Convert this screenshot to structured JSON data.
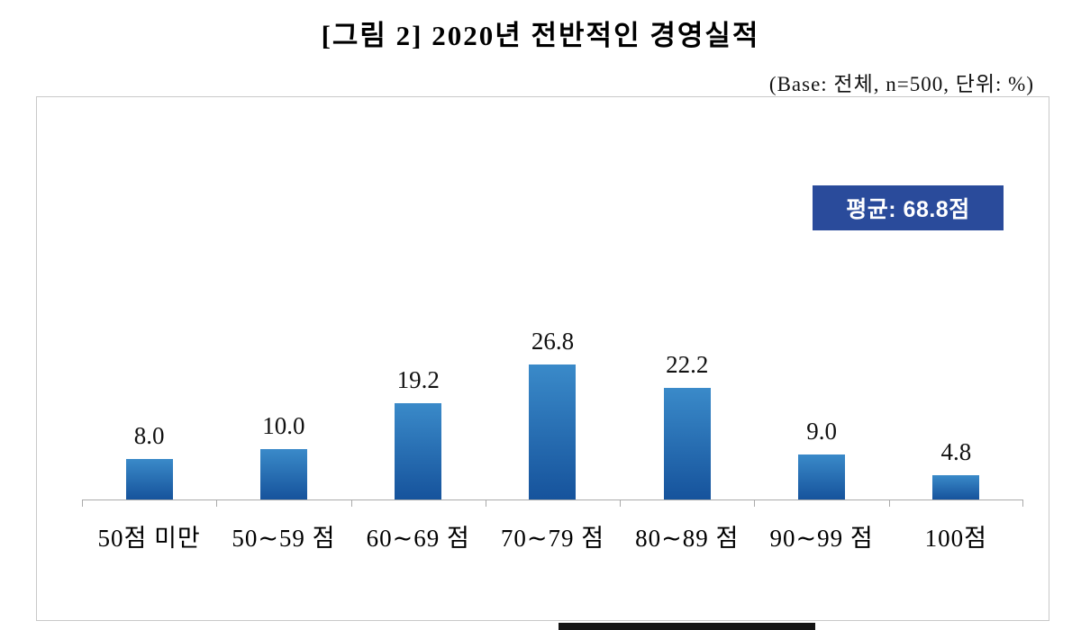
{
  "title": "[그림 2] 2020년 전반적인 경영실적",
  "base_note": "(Base: 전체, n=500, 단위: %)",
  "average_badge": "평균: 68.8점",
  "chart_data": {
    "type": "bar",
    "title": "[그림 2] 2020년 전반적인 경영실적",
    "categories": [
      "50점 미만",
      "50∼59 점",
      "60∼69 점",
      "70∼79 점",
      "80∼89 점",
      "90∼99 점",
      "100점"
    ],
    "values": [
      8.0,
      10.0,
      19.2,
      26.8,
      22.2,
      9.0,
      4.8
    ],
    "value_labels": [
      "8.0",
      "10.0",
      "19.2",
      "26.8",
      "22.2",
      "9.0",
      "4.8"
    ],
    "unit": "%",
    "base": "전체, n=500",
    "annotation": "평균: 68.8점",
    "average": 68.8,
    "ylim": [
      0,
      30
    ],
    "grid": false,
    "legend": false
  },
  "colors": {
    "badge_bg": "#2a4b9b",
    "badge_text": "#ffffff",
    "bar_gradient_top": "#3a8ac9",
    "bar_gradient_bottom": "#16539c",
    "frame_border": "#c9c9c9",
    "axis": "#aaaaaa"
  }
}
